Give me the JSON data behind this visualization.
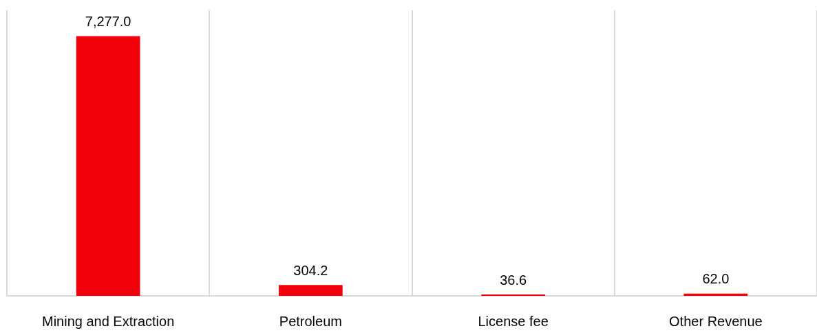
{
  "chart_data": {
    "type": "bar",
    "categories": [
      "Mining and Extraction",
      "Petroleum",
      "License fee",
      "Other Revenue"
    ],
    "values": [
      7277.0,
      304.2,
      36.6,
      62.0
    ],
    "value_labels": [
      "7,277.0",
      "304.2",
      "36.6",
      "62.0"
    ],
    "color": "#f2000c",
    "ylim": [
      0,
      8000
    ],
    "grid": "x",
    "tick_labels": "x"
  }
}
